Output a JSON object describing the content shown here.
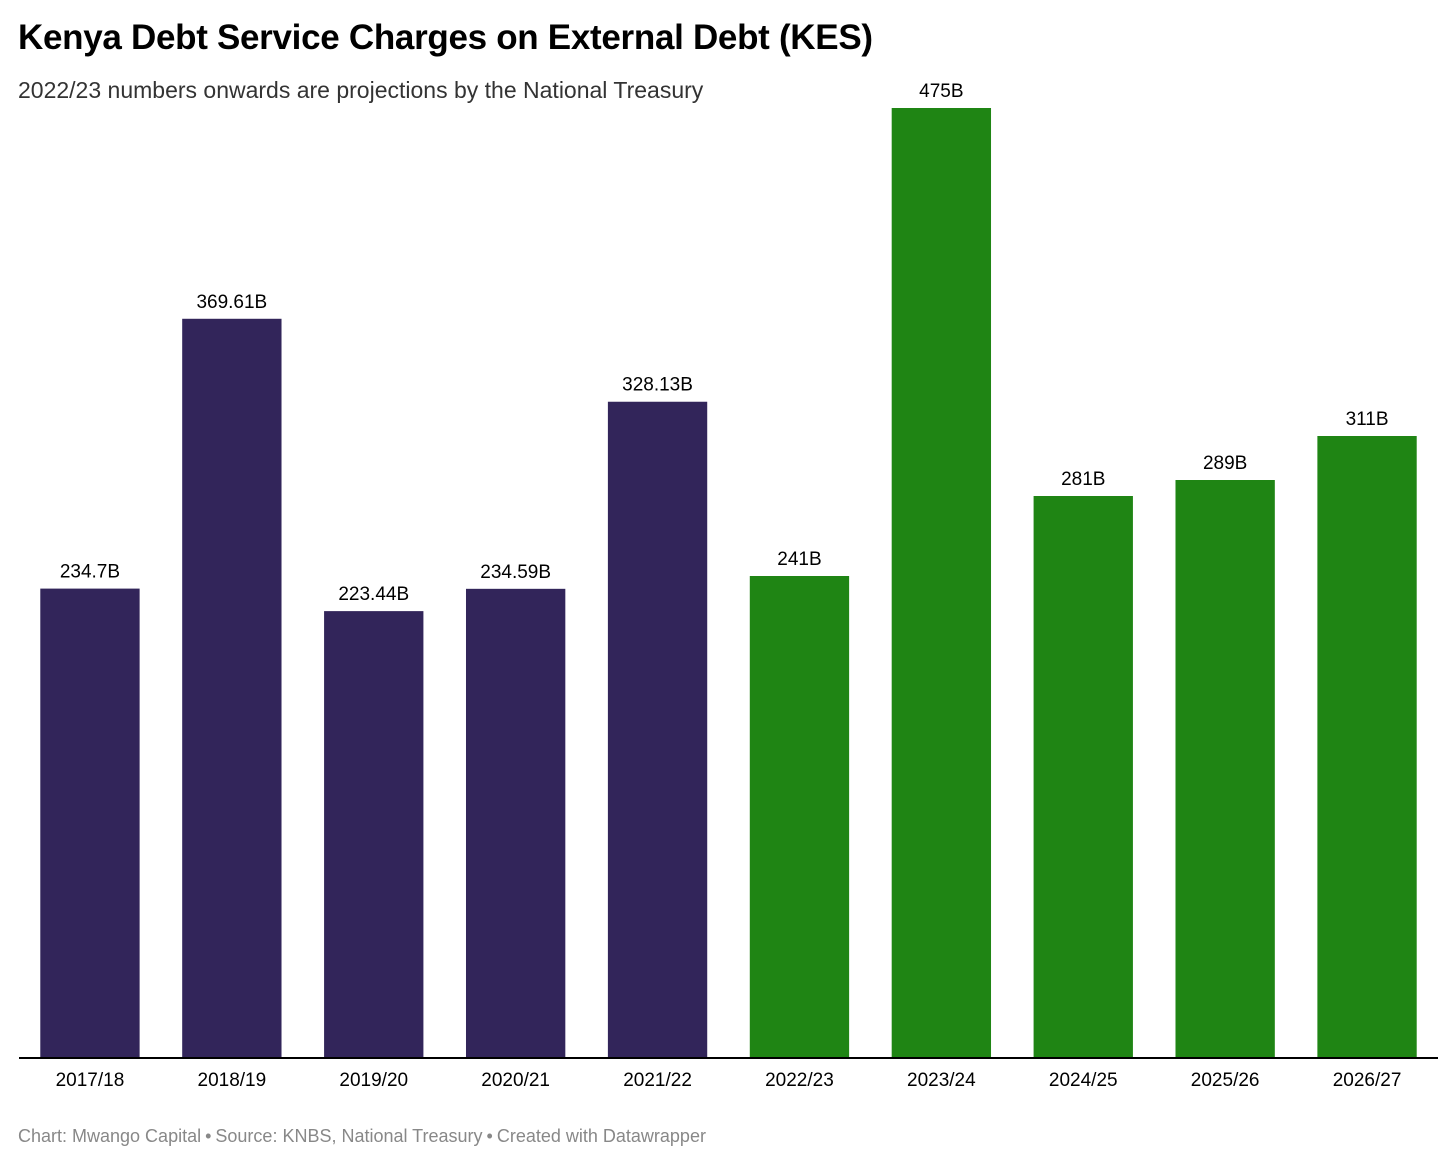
{
  "header": {
    "title": "Kenya Debt Service Charges on External Debt (KES)",
    "subtitle": "2022/23 numbers onwards are projections by the National Treasury"
  },
  "footer": {
    "chart_by": "Chart: Mwango Capital",
    "source": "Source: KNBS, National Treasury",
    "created_with": "Created with Datawrapper",
    "separator": "•"
  },
  "colors": {
    "actual": "#32255a",
    "projection": "#1f8514",
    "axis": "#000000",
    "text": "#000000"
  },
  "chart_data": {
    "type": "bar",
    "title": "Kenya Debt Service Charges on External Debt (KES)",
    "subtitle": "2022/23 numbers onwards are projections by the National Treasury",
    "xlabel": "",
    "ylabel": "",
    "unit": "B",
    "grid": false,
    "ylim": [
      0,
      500
    ],
    "categories": [
      "2017/18",
      "2018/19",
      "2019/20",
      "2020/21",
      "2021/22",
      "2022/23",
      "2023/24",
      "2024/25",
      "2025/26",
      "2026/27"
    ],
    "values": [
      234.7,
      369.61,
      223.44,
      234.59,
      328.13,
      241,
      475,
      281,
      289,
      311
    ],
    "labels": [
      "234.7B",
      "369.61B",
      "223.44B",
      "234.59B",
      "328.13B",
      "241B",
      "475B",
      "281B",
      "289B",
      "311B"
    ],
    "projection": [
      false,
      false,
      false,
      false,
      false,
      true,
      true,
      true,
      true,
      true
    ]
  }
}
